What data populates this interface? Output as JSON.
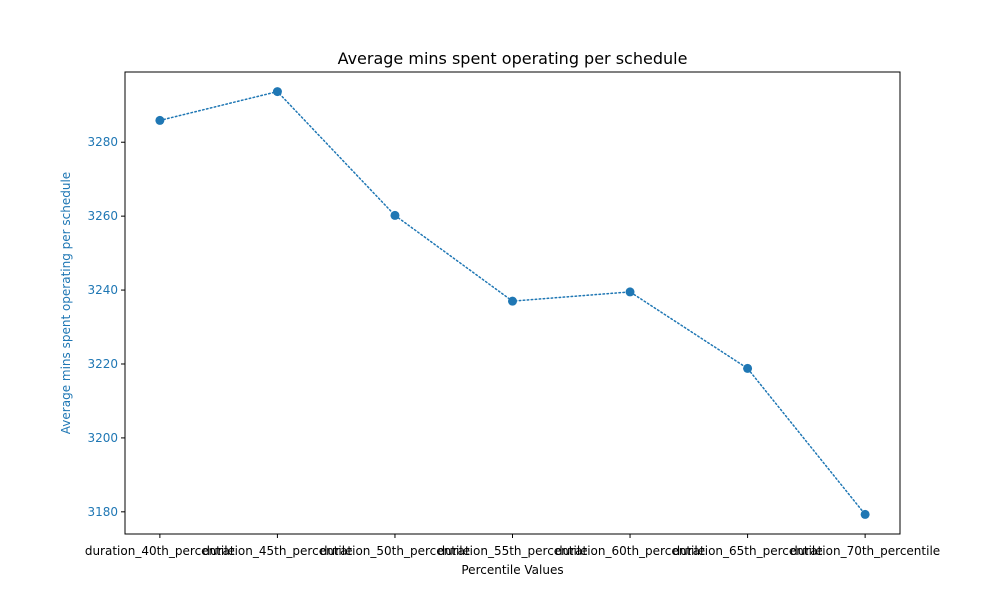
{
  "chart_data": {
    "type": "line",
    "title": "Average mins spent operating per schedule",
    "xlabel": "Percentile Values",
    "ylabel": "Average mins spent operating per schedule",
    "categories": [
      "duration_40th_percentile",
      "duration_45th_percentile",
      "duration_50th_percentile",
      "duration_55th_percentile",
      "duration_60th_percentile",
      "duration_65th_percentile",
      "duration_70th_percentile"
    ],
    "series": [
      {
        "values": [
          3285.9,
          3293.7,
          3260.2,
          3237.0,
          3239.5,
          3218.8,
          3179.3
        ],
        "color": "#1f77b4",
        "line_style": "dotted",
        "marker": "circle"
      }
    ],
    "ylim": [
      3174,
      3299
    ],
    "yticks": [
      3180,
      3200,
      3220,
      3240,
      3260,
      3280
    ],
    "grid": false,
    "legend": "none",
    "ylabel_color": "#1f77b4",
    "ytick_color": "#1f77b4"
  }
}
